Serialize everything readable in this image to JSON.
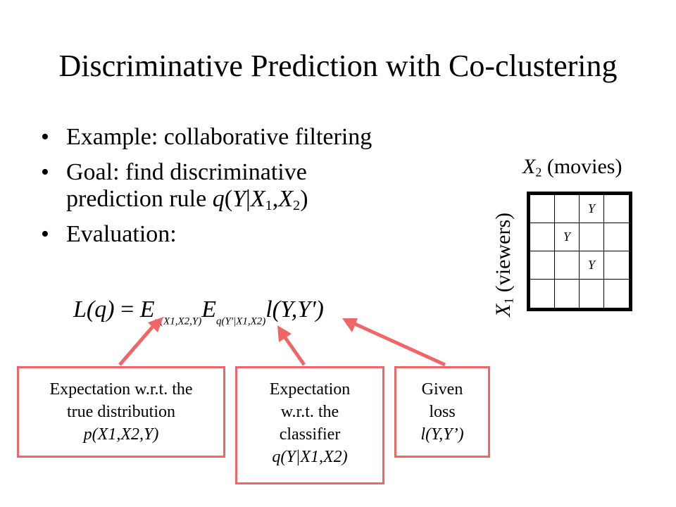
{
  "title": "Discriminative Prediction with Co-clustering",
  "bullets": {
    "b1": "Example: collaborative filtering",
    "b2_line1": "Goal: find discriminative",
    "b2_line2_prefix": "prediction rule ",
    "b3": "Evaluation:"
  },
  "rule": {
    "q": "q",
    "Y": "Y",
    "bar": "|",
    "X": "X",
    "sub1": "1",
    "sub2": "2",
    "comma": ",",
    "open": "(",
    "close": ")"
  },
  "formula": {
    "lhs": "L(q)",
    "eq": " = ",
    "E": "E",
    "sub_p": "p(X1,X2,Y)",
    "sub_q": "q(Y'|X1,X2)",
    "loss": "l(Y,Y')"
  },
  "grid": {
    "top_label_var": "X",
    "top_label_sub": "2",
    "top_label_text": " (movies)",
    "side_label_var": "X",
    "side_label_sub": "1",
    "side_label_text": " (viewers)",
    "cells": [
      [
        "",
        "",
        "Y",
        ""
      ],
      [
        "",
        "Y",
        "",
        ""
      ],
      [
        "",
        "",
        "Y",
        ""
      ],
      [
        "",
        "",
        "",
        ""
      ]
    ]
  },
  "boxes": {
    "box1": {
      "line1": "Expectation w.r.t. the",
      "line2": "true distribution",
      "line3": "p(X1,X2,Y)"
    },
    "box2": {
      "line1": "Expectation",
      "line2": "w.r.t. the",
      "line3": "classifier",
      "line4": "q(Y|X1,X2)"
    },
    "box3": {
      "line1": "Given",
      "line2": "loss",
      "line3": "l(Y,Y’)"
    }
  },
  "colors": {
    "accent": "#f06666"
  }
}
